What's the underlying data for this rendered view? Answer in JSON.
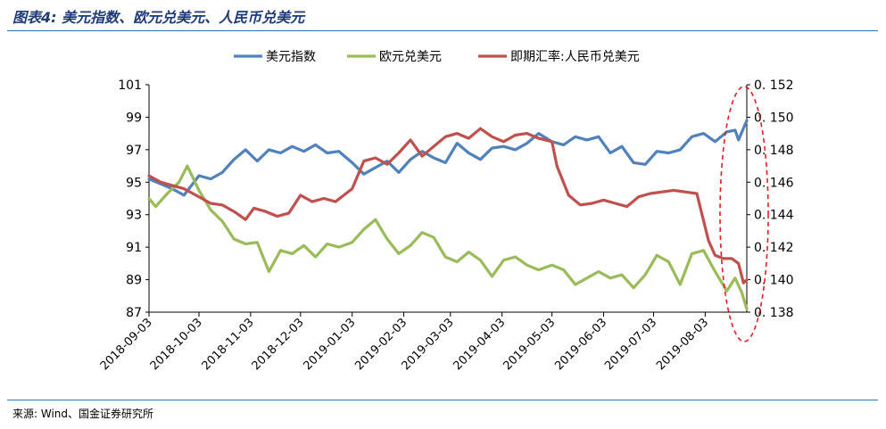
{
  "title": "图表4: 美元指数、欧元兑美元、人民币兑美元",
  "source": "来源: Wind、国金证券研究所",
  "chart_data": {
    "type": "line",
    "title": "",
    "legend_position": "top-center",
    "grid": false,
    "xlabel": "",
    "ylabel_left": "",
    "ylabel_right": "",
    "x_range": [
      "2018-09-03",
      "2019-08-28"
    ],
    "x_ticks": [
      "2018-09-03",
      "2018-10-03",
      "2018-11-03",
      "2018-12-03",
      "2019-01-03",
      "2019-02-03",
      "2019-03-03",
      "2019-04-03",
      "2019-05-03",
      "2019-06-03",
      "2019-07-03",
      "2019-08-03"
    ],
    "y_left": {
      "min": 87,
      "max": 101,
      "ticks": [
        "87",
        "89",
        "91",
        "93",
        "95",
        "97",
        "99",
        "101"
      ]
    },
    "y_right": {
      "min": 0.138,
      "max": 0.152,
      "ticks": [
        "0.138",
        "0.140",
        "0.142",
        "0.144",
        "0.146",
        "0.148",
        "0.150",
        "0.152"
      ]
    },
    "annotation": {
      "shape": "dashed-ellipse",
      "color": "#e02020",
      "target": "late August 2019"
    },
    "series": [
      {
        "name": "美元指数",
        "axis": "left",
        "color": "#4f81bd",
        "points": [
          [
            "2018-09-03",
            95.2
          ],
          [
            "2018-09-17",
            94.6
          ],
          [
            "2018-09-24",
            94.2
          ],
          [
            "2018-10-03",
            95.4
          ],
          [
            "2018-10-10",
            95.2
          ],
          [
            "2018-10-17",
            95.6
          ],
          [
            "2018-10-24",
            96.4
          ],
          [
            "2018-10-31",
            97.0
          ],
          [
            "2018-11-07",
            96.3
          ],
          [
            "2018-11-14",
            97.0
          ],
          [
            "2018-11-21",
            96.8
          ],
          [
            "2018-11-28",
            97.2
          ],
          [
            "2018-12-05",
            96.9
          ],
          [
            "2018-12-12",
            97.3
          ],
          [
            "2018-12-19",
            96.8
          ],
          [
            "2018-12-26",
            96.9
          ],
          [
            "2019-01-03",
            96.2
          ],
          [
            "2019-01-10",
            95.5
          ],
          [
            "2019-01-17",
            95.9
          ],
          [
            "2019-01-24",
            96.3
          ],
          [
            "2019-01-31",
            95.6
          ],
          [
            "2019-02-07",
            96.4
          ],
          [
            "2019-02-14",
            96.9
          ],
          [
            "2019-02-21",
            96.5
          ],
          [
            "2019-02-28",
            96.2
          ],
          [
            "2019-03-07",
            97.4
          ],
          [
            "2019-03-14",
            96.8
          ],
          [
            "2019-03-21",
            96.4
          ],
          [
            "2019-03-28",
            97.1
          ],
          [
            "2019-04-04",
            97.2
          ],
          [
            "2019-04-11",
            97.0
          ],
          [
            "2019-04-18",
            97.4
          ],
          [
            "2019-04-25",
            98.0
          ],
          [
            "2019-05-03",
            97.5
          ],
          [
            "2019-05-10",
            97.3
          ],
          [
            "2019-05-17",
            97.8
          ],
          [
            "2019-05-24",
            97.6
          ],
          [
            "2019-05-31",
            97.8
          ],
          [
            "2019-06-07",
            96.8
          ],
          [
            "2019-06-14",
            97.2
          ],
          [
            "2019-06-21",
            96.2
          ],
          [
            "2019-06-28",
            96.1
          ],
          [
            "2019-07-05",
            96.9
          ],
          [
            "2019-07-12",
            96.8
          ],
          [
            "2019-07-19",
            97.0
          ],
          [
            "2019-07-26",
            97.8
          ],
          [
            "2019-08-02",
            98.0
          ],
          [
            "2019-08-09",
            97.5
          ],
          [
            "2019-08-16",
            98.1
          ],
          [
            "2019-08-21",
            98.2
          ],
          [
            "2019-08-23",
            97.6
          ],
          [
            "2019-08-28",
            98.8
          ]
        ]
      },
      {
        "name": "欧元兑美元",
        "axis": "left",
        "color": "#9bbb59",
        "points": [
          [
            "2018-09-03",
            94.0
          ],
          [
            "2018-09-07",
            93.5
          ],
          [
            "2018-09-14",
            94.3
          ],
          [
            "2018-09-21",
            95.0
          ],
          [
            "2018-09-26",
            96.0
          ],
          [
            "2018-10-03",
            94.5
          ],
          [
            "2018-10-10",
            93.3
          ],
          [
            "2018-10-17",
            92.6
          ],
          [
            "2018-10-24",
            91.5
          ],
          [
            "2018-10-31",
            91.2
          ],
          [
            "2018-11-07",
            91.3
          ],
          [
            "2018-11-14",
            89.5
          ],
          [
            "2018-11-21",
            90.8
          ],
          [
            "2018-11-28",
            90.6
          ],
          [
            "2018-12-05",
            91.1
          ],
          [
            "2018-12-12",
            90.4
          ],
          [
            "2018-12-19",
            91.2
          ],
          [
            "2018-12-26",
            91.0
          ],
          [
            "2019-01-03",
            91.3
          ],
          [
            "2019-01-10",
            92.1
          ],
          [
            "2019-01-17",
            92.7
          ],
          [
            "2019-01-24",
            91.5
          ],
          [
            "2019-01-31",
            90.6
          ],
          [
            "2019-02-07",
            91.1
          ],
          [
            "2019-02-14",
            91.9
          ],
          [
            "2019-02-21",
            91.6
          ],
          [
            "2019-02-28",
            90.4
          ],
          [
            "2019-03-07",
            90.1
          ],
          [
            "2019-03-14",
            90.7
          ],
          [
            "2019-03-21",
            90.2
          ],
          [
            "2019-03-28",
            89.2
          ],
          [
            "2019-04-04",
            90.2
          ],
          [
            "2019-04-11",
            90.4
          ],
          [
            "2019-04-18",
            89.9
          ],
          [
            "2019-04-25",
            89.6
          ],
          [
            "2019-05-03",
            89.9
          ],
          [
            "2019-05-10",
            89.6
          ],
          [
            "2019-05-17",
            88.7
          ],
          [
            "2019-05-24",
            89.1
          ],
          [
            "2019-05-31",
            89.5
          ],
          [
            "2019-06-07",
            89.1
          ],
          [
            "2019-06-14",
            89.3
          ],
          [
            "2019-06-21",
            88.5
          ],
          [
            "2019-06-28",
            89.3
          ],
          [
            "2019-07-05",
            90.5
          ],
          [
            "2019-07-12",
            90.1
          ],
          [
            "2019-07-19",
            88.7
          ],
          [
            "2019-07-26",
            90.6
          ],
          [
            "2019-08-02",
            90.8
          ],
          [
            "2019-08-09",
            89.5
          ],
          [
            "2019-08-16",
            88.3
          ],
          [
            "2019-08-21",
            89.1
          ],
          [
            "2019-08-25",
            88.2
          ],
          [
            "2019-08-28",
            87.2
          ]
        ]
      },
      {
        "name": "即期汇率:人民币兑美元",
        "axis": "right",
        "color": "#c0504d",
        "points": [
          [
            "2018-09-03",
            0.1464
          ],
          [
            "2018-09-10",
            0.146
          ],
          [
            "2018-09-17",
            0.1458
          ],
          [
            "2018-09-24",
            0.1456
          ],
          [
            "2018-10-03",
            0.1451
          ],
          [
            "2018-10-10",
            0.1447
          ],
          [
            "2018-10-17",
            0.1446
          ],
          [
            "2018-10-24",
            0.1442
          ],
          [
            "2018-10-31",
            0.1437
          ],
          [
            "2018-11-05",
            0.1444
          ],
          [
            "2018-11-12",
            0.1442
          ],
          [
            "2018-11-19",
            0.1439
          ],
          [
            "2018-11-26",
            0.1441
          ],
          [
            "2018-12-03",
            0.1452
          ],
          [
            "2018-12-10",
            0.1448
          ],
          [
            "2018-12-17",
            0.145
          ],
          [
            "2018-12-24",
            0.1448
          ],
          [
            "2019-01-03",
            0.1456
          ],
          [
            "2019-01-10",
            0.1473
          ],
          [
            "2019-01-17",
            0.1475
          ],
          [
            "2019-01-24",
            0.1471
          ],
          [
            "2019-01-31",
            0.1478
          ],
          [
            "2019-02-07",
            0.1486
          ],
          [
            "2019-02-14",
            0.1476
          ],
          [
            "2019-02-21",
            0.1482
          ],
          [
            "2019-02-28",
            0.1488
          ],
          [
            "2019-03-07",
            0.149
          ],
          [
            "2019-03-14",
            0.1487
          ],
          [
            "2019-03-21",
            0.1493
          ],
          [
            "2019-03-28",
            0.1488
          ],
          [
            "2019-04-04",
            0.1485
          ],
          [
            "2019-04-11",
            0.1489
          ],
          [
            "2019-04-18",
            0.149
          ],
          [
            "2019-04-25",
            0.1487
          ],
          [
            "2019-05-03",
            0.1485
          ],
          [
            "2019-05-06",
            0.147
          ],
          [
            "2019-05-13",
            0.1452
          ],
          [
            "2019-05-20",
            0.1446
          ],
          [
            "2019-05-27",
            0.1447
          ],
          [
            "2019-06-03",
            0.1449
          ],
          [
            "2019-06-10",
            0.1447
          ],
          [
            "2019-06-17",
            0.1445
          ],
          [
            "2019-06-24",
            0.1451
          ],
          [
            "2019-07-01",
            0.1453
          ],
          [
            "2019-07-08",
            0.1454
          ],
          [
            "2019-07-15",
            0.1455
          ],
          [
            "2019-07-22",
            0.1454
          ],
          [
            "2019-07-29",
            0.1453
          ],
          [
            "2019-08-05",
            0.1424
          ],
          [
            "2019-08-09",
            0.1415
          ],
          [
            "2019-08-14",
            0.1413
          ],
          [
            "2019-08-19",
            0.1413
          ],
          [
            "2019-08-23",
            0.141
          ],
          [
            "2019-08-26",
            0.1398
          ],
          [
            "2019-08-28",
            0.14
          ]
        ]
      }
    ]
  }
}
